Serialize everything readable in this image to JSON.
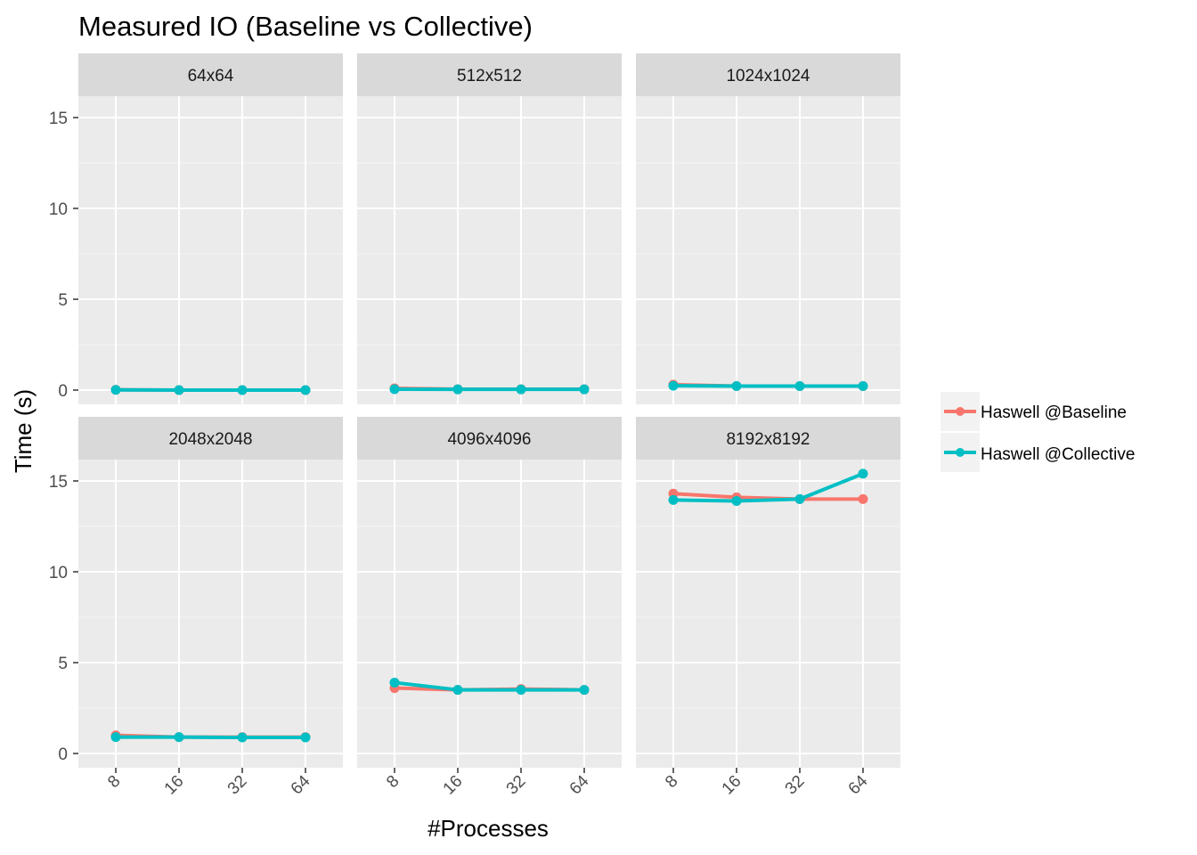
{
  "chart_data": {
    "type": "line",
    "title": "Measured IO (Baseline vs Collective)",
    "xlabel": "#Processes",
    "ylabel": "Time (s)",
    "categories": [
      "8",
      "16",
      "32",
      "64"
    ],
    "ylim": [
      -0.6,
      17.2
    ],
    "yticks": [
      0,
      5,
      10,
      15
    ],
    "grid": true,
    "legend_position": "right",
    "series_colors": {
      "baseline": "#F8766D",
      "collective": "#00BFC4"
    },
    "legend": [
      "Haswell @Baseline",
      "Haswell @Collective"
    ],
    "facets": [
      {
        "label": "64x64",
        "series": [
          {
            "name": "Haswell @Baseline",
            "values": [
              0.02,
              0.0,
              0.0,
              0.0
            ]
          },
          {
            "name": "Haswell @Collective",
            "values": [
              0.01,
              0.0,
              0.0,
              0.0
            ]
          }
        ]
      },
      {
        "label": "512x512",
        "series": [
          {
            "name": "Haswell @Baseline",
            "values": [
              0.1,
              0.05,
              0.05,
              0.05
            ]
          },
          {
            "name": "Haswell @Collective",
            "values": [
              0.05,
              0.04,
              0.04,
              0.04
            ]
          }
        ]
      },
      {
        "label": "1024x1024",
        "series": [
          {
            "name": "Haswell @Baseline",
            "values": [
              0.3,
              0.22,
              0.22,
              0.22
            ]
          },
          {
            "name": "Haswell @Collective",
            "values": [
              0.24,
              0.22,
              0.22,
              0.22
            ]
          }
        ]
      },
      {
        "label": "2048x2048",
        "series": [
          {
            "name": "Haswell @Baseline",
            "values": [
              1.0,
              0.9,
              0.9,
              0.9
            ]
          },
          {
            "name": "Haswell @Collective",
            "values": [
              0.9,
              0.9,
              0.88,
              0.88
            ]
          }
        ]
      },
      {
        "label": "4096x4096",
        "series": [
          {
            "name": "Haswell @Baseline",
            "values": [
              3.6,
              3.5,
              3.55,
              3.5
            ]
          },
          {
            "name": "Haswell @Collective",
            "values": [
              3.9,
              3.5,
              3.5,
              3.5
            ]
          }
        ]
      },
      {
        "label": "8192x8192",
        "series": [
          {
            "name": "Haswell @Baseline",
            "values": [
              14.3,
              14.1,
              14.0,
              14.0
            ]
          },
          {
            "name": "Haswell @Collective",
            "values": [
              13.95,
              13.9,
              14.0,
              15.4
            ]
          }
        ]
      }
    ]
  }
}
